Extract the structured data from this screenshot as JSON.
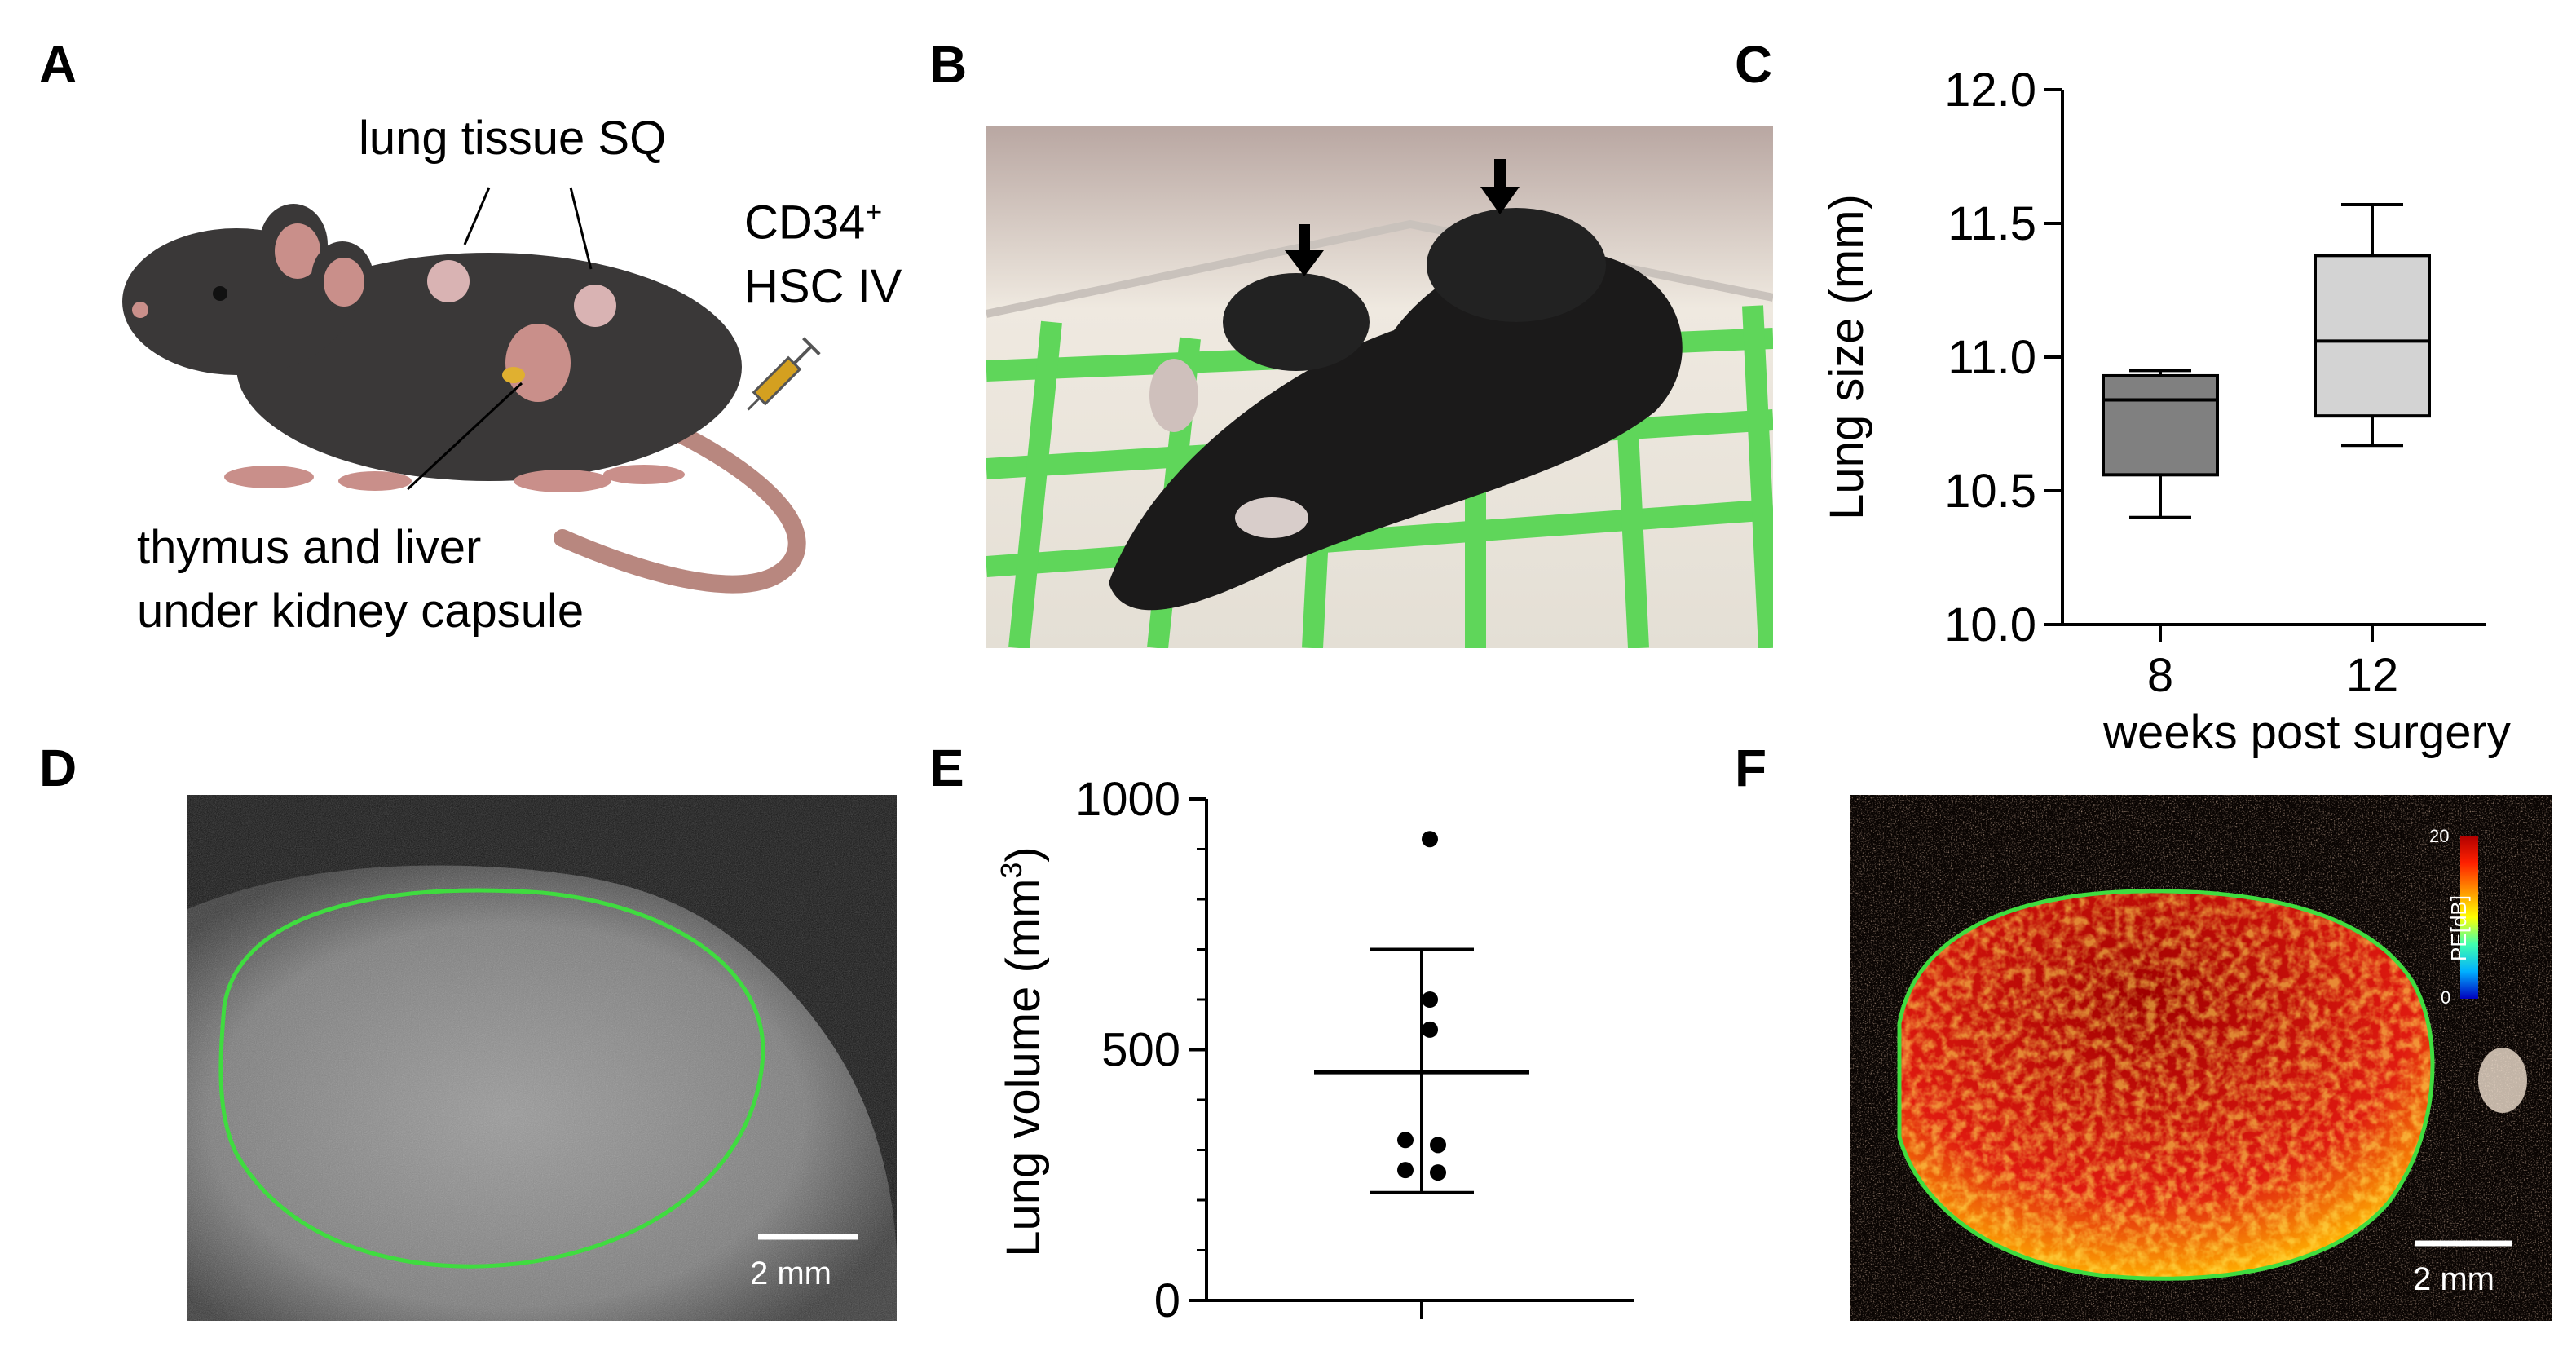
{
  "panels": {
    "a": {
      "letter": "A",
      "label_lung": "lung tissue SQ",
      "label_cd34": "CD34",
      "label_cd34_sup": "+",
      "label_hsc": "HSC IV",
      "label_thymus_line1": "thymus and liver",
      "label_thymus_line2": "under kidney capsule",
      "icons": [
        "mouse-illustration",
        "syringe-icon"
      ]
    },
    "b": {
      "letter": "B",
      "icons": [
        "arrow-down-icon",
        "arrow-down-icon"
      ]
    },
    "c": {
      "letter": "C"
    },
    "d": {
      "letter": "D",
      "scalebar": "2 mm"
    },
    "e": {
      "letter": "E"
    },
    "f": {
      "letter": "F",
      "scalebar": "2 mm",
      "colorbar_title": "PE[dB]",
      "colorbar_max": "20",
      "colorbar_min": "0"
    }
  },
  "chart_data": [
    {
      "id": "C",
      "type": "box",
      "ylabel": "Lung size (mm)",
      "xlabel": "weeks post surgery",
      "categories": [
        "8",
        "12"
      ],
      "ylim": [
        10.0,
        12.0
      ],
      "yticks": [
        "10.0",
        "10.5",
        "11.0",
        "11.5",
        "12.0"
      ],
      "boxes": [
        {
          "category": "8",
          "min": 10.4,
          "q1": 10.56,
          "median": 10.84,
          "q3": 10.93,
          "max": 10.95,
          "color": "#808080"
        },
        {
          "category": "12",
          "min": 10.67,
          "q1": 10.78,
          "median": 11.06,
          "q3": 11.38,
          "max": 11.57,
          "color": "#d3d3d3"
        }
      ]
    },
    {
      "id": "E",
      "type": "scatter",
      "ylabel": "Lung volume (mm",
      "ylabel_sup": "3",
      "ylabel_end": ")",
      "ylim": [
        0,
        1000
      ],
      "yticks": [
        "0",
        "500",
        "1000"
      ],
      "points": [
        920,
        600,
        540,
        320,
        310,
        260,
        255
      ],
      "mean": 455,
      "sd_upper": 700,
      "sd_lower": 215
    }
  ]
}
